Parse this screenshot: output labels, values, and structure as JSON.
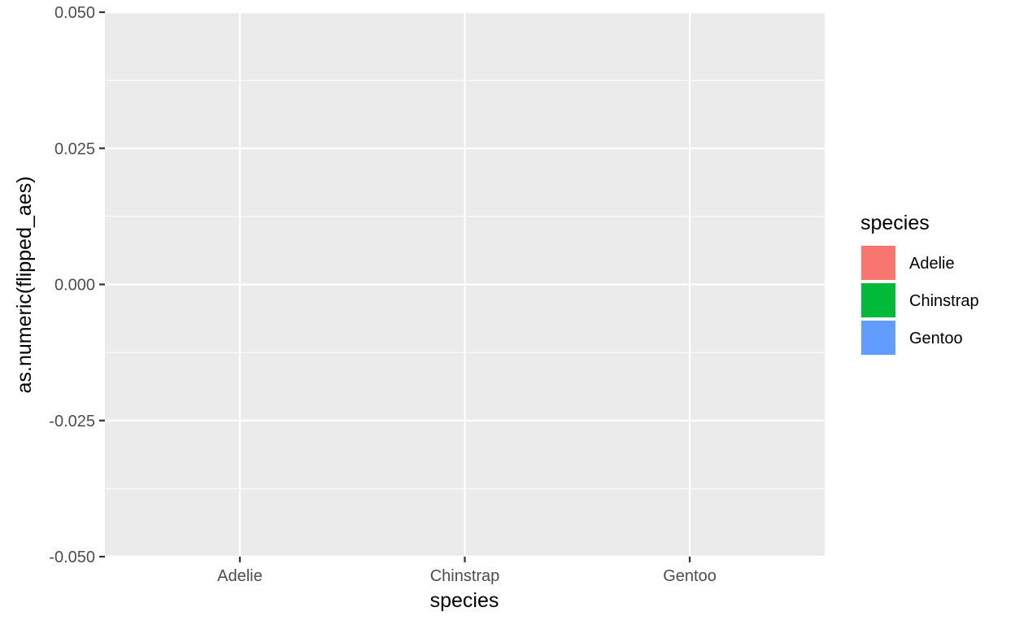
{
  "chart_data": {
    "type": "bar",
    "categories": [
      "Adelie",
      "Chinstrap",
      "Gentoo"
    ],
    "series": [],
    "xlabel": "species",
    "ylabel": "as.numeric(flipped_aes)",
    "ylim": [
      -0.05,
      0.05
    ],
    "y_ticks": [
      "-0.050",
      "-0.025",
      "0.000",
      "0.025",
      "0.050"
    ],
    "y_tick_values": [
      -0.05,
      -0.025,
      0,
      0.025,
      0.05
    ],
    "grid": true,
    "legend": {
      "title": "species",
      "placement": "right",
      "entries": [
        {
          "label": "Adelie",
          "color": "#f8766d"
        },
        {
          "label": "Chinstrap",
          "color": "#00ba38"
        },
        {
          "label": "Gentoo",
          "color": "#619cff"
        }
      ]
    },
    "colors": {
      "panel_background": "#ebebeb",
      "grid": "#ffffff",
      "axis_text": "#4d4d4d",
      "ticks": "#333333"
    }
  }
}
